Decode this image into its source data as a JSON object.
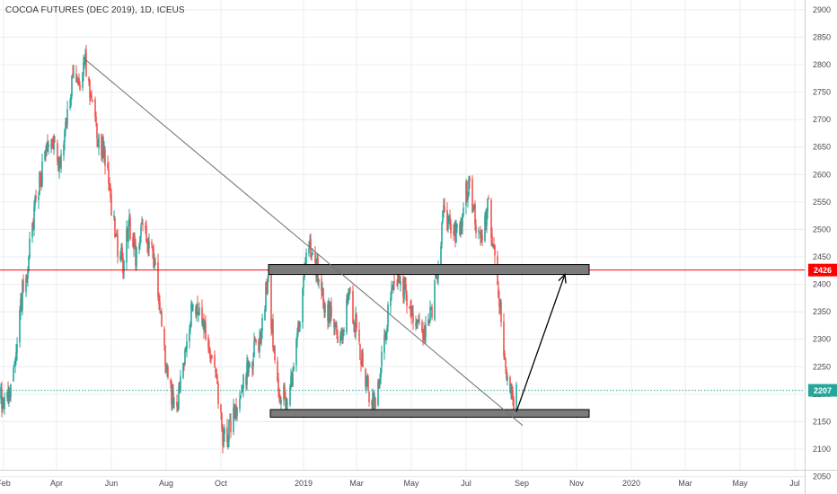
{
  "chart_header": {
    "symbol_title": "COCOA FUTURES (DEC 2019)",
    "sep1": ", ",
    "interval": "1D",
    "sep2": ", ",
    "exchange": "ICEUS"
  },
  "colors": {
    "up": "#26a69a",
    "down": "#ef5350",
    "grid": "#ececec",
    "zone_fill": "#7b7b7b",
    "zone_stroke": "#000000",
    "hline_red": "#ff0000",
    "hline_teal": "#26a69a",
    "trendline": "#707070",
    "arrow": "#000000"
  },
  "chart_data": {
    "type": "candlestick",
    "title": "COCOA FUTURES (DEC 2019), 1D, ICEUS",
    "y_axis": {
      "range": [
        2010,
        2915
      ],
      "ticks": [
        2050,
        2100,
        2150,
        2200,
        2250,
        2300,
        2350,
        2400,
        2450,
        2500,
        2550,
        2600,
        2650,
        2700,
        2750,
        2800,
        2850,
        2900
      ],
      "position": "right"
    },
    "x_axis": {
      "ticks": [
        {
          "label": "Feb",
          "date": "2018-02-01"
        },
        {
          "label": "Apr",
          "date": "2018-04-01"
        },
        {
          "label": "Jun",
          "date": "2018-06-01"
        },
        {
          "label": "Aug",
          "date": "2018-08-01"
        },
        {
          "label": "Oct",
          "date": "2018-10-01"
        },
        {
          "label": "2019",
          "date": "2019-01-01"
        },
        {
          "label": "Mar",
          "date": "2019-03-01"
        },
        {
          "label": "May",
          "date": "2019-05-01"
        },
        {
          "label": "Jul",
          "date": "2019-07-01"
        },
        {
          "label": "Sep",
          "date": "2019-09-01"
        },
        {
          "label": "Nov",
          "date": "2019-11-01"
        },
        {
          "label": "2020",
          "date": "2020-01-01"
        },
        {
          "label": "Mar",
          "date": "2020-03-01"
        },
        {
          "label": "May",
          "date": "2020-05-01"
        },
        {
          "label": "Jul",
          "date": "2020-07-01"
        }
      ]
    },
    "grid": true,
    "legend": "none",
    "price_path": [
      [
        "2018-01-28",
        2195
      ],
      [
        "2018-02-08",
        2200
      ],
      [
        "2018-02-15",
        2270
      ],
      [
        "2018-02-22",
        2390
      ],
      [
        "2018-03-01",
        2450
      ],
      [
        "2018-03-08",
        2540
      ],
      [
        "2018-03-15",
        2600
      ],
      [
        "2018-03-22",
        2660
      ],
      [
        "2018-03-29",
        2640
      ],
      [
        "2018-04-05",
        2620
      ],
      [
        "2018-04-12",
        2700
      ],
      [
        "2018-04-19",
        2780
      ],
      [
        "2018-04-26",
        2760
      ],
      [
        "2018-05-03",
        2810
      ],
      [
        "2018-05-10",
        2740
      ],
      [
        "2018-05-17",
        2670
      ],
      [
        "2018-05-24",
        2640
      ],
      [
        "2018-05-31",
        2560
      ],
      [
        "2018-06-07",
        2470
      ],
      [
        "2018-06-14",
        2440
      ],
      [
        "2018-06-21",
        2510
      ],
      [
        "2018-06-28",
        2450
      ],
      [
        "2018-07-05",
        2500
      ],
      [
        "2018-07-12",
        2480
      ],
      [
        "2018-07-19",
        2440
      ],
      [
        "2018-07-26",
        2350
      ],
      [
        "2018-08-02",
        2230
      ],
      [
        "2018-08-09",
        2190
      ],
      [
        "2018-08-16",
        2200
      ],
      [
        "2018-08-23",
        2280
      ],
      [
        "2018-08-30",
        2360
      ],
      [
        "2018-09-06",
        2340
      ],
      [
        "2018-09-13",
        2310
      ],
      [
        "2018-09-20",
        2280
      ],
      [
        "2018-09-27",
        2200
      ],
      [
        "2018-10-04",
        2110
      ],
      [
        "2018-10-11",
        2150
      ],
      [
        "2018-10-18",
        2170
      ],
      [
        "2018-10-25",
        2220
      ],
      [
        "2018-11-01",
        2250
      ],
      [
        "2018-11-08",
        2280
      ],
      [
        "2018-11-15",
        2310
      ],
      [
        "2018-11-22",
        2420
      ],
      [
        "2018-11-29",
        2280
      ],
      [
        "2018-12-06",
        2200
      ],
      [
        "2018-12-13",
        2190
      ],
      [
        "2018-12-20",
        2240
      ],
      [
        "2018-12-27",
        2320
      ],
      [
        "2019-01-03",
        2440
      ],
      [
        "2019-01-10",
        2470
      ],
      [
        "2019-01-17",
        2420
      ],
      [
        "2019-01-24",
        2360
      ],
      [
        "2019-01-31",
        2350
      ],
      [
        "2019-02-07",
        2300
      ],
      [
        "2019-02-14",
        2320
      ],
      [
        "2019-02-21",
        2380
      ],
      [
        "2019-02-28",
        2330
      ],
      [
        "2019-03-07",
        2260
      ],
      [
        "2019-03-14",
        2200
      ],
      [
        "2019-03-21",
        2180
      ],
      [
        "2019-03-28",
        2250
      ],
      [
        "2019-04-04",
        2330
      ],
      [
        "2019-04-11",
        2410
      ],
      [
        "2019-04-18",
        2420
      ],
      [
        "2019-04-25",
        2380
      ],
      [
        "2019-05-02",
        2350
      ],
      [
        "2019-05-09",
        2320
      ],
      [
        "2019-05-16",
        2300
      ],
      [
        "2019-05-23",
        2350
      ],
      [
        "2019-05-30",
        2420
      ],
      [
        "2019-06-06",
        2530
      ],
      [
        "2019-06-13",
        2510
      ],
      [
        "2019-06-20",
        2480
      ],
      [
        "2019-06-27",
        2530
      ],
      [
        "2019-07-04",
        2590
      ],
      [
        "2019-07-11",
        2520
      ],
      [
        "2019-07-18",
        2470
      ],
      [
        "2019-07-25",
        2550
      ],
      [
        "2019-08-01",
        2450
      ],
      [
        "2019-08-08",
        2360
      ],
      [
        "2019-08-15",
        2240
      ],
      [
        "2019-08-22",
        2185
      ],
      [
        "2019-08-26",
        2200
      ]
    ],
    "drawings": {
      "resistance_zone": {
        "from": "2018-11-23",
        "to": "2019-11-15",
        "low": 2418,
        "high": 2436
      },
      "support_zone": {
        "from": "2018-11-25",
        "to": "2019-11-15",
        "low": 2158,
        "high": 2172
      },
      "trendline": {
        "from": [
          "2018-05-01",
          2812
        ],
        "to": [
          "2019-09-02",
          2143
        ]
      },
      "projection_arrow": {
        "from": [
          "2019-08-26",
          2168
        ],
        "to": [
          "2019-10-19",
          2418
        ]
      }
    },
    "price_lines": [
      {
        "value": 2426,
        "label": "2426",
        "style": "solid",
        "color": "#ff0000"
      },
      {
        "value": 2207,
        "label": "2207",
        "style": "dotted",
        "color": "#26a69a"
      }
    ]
  }
}
